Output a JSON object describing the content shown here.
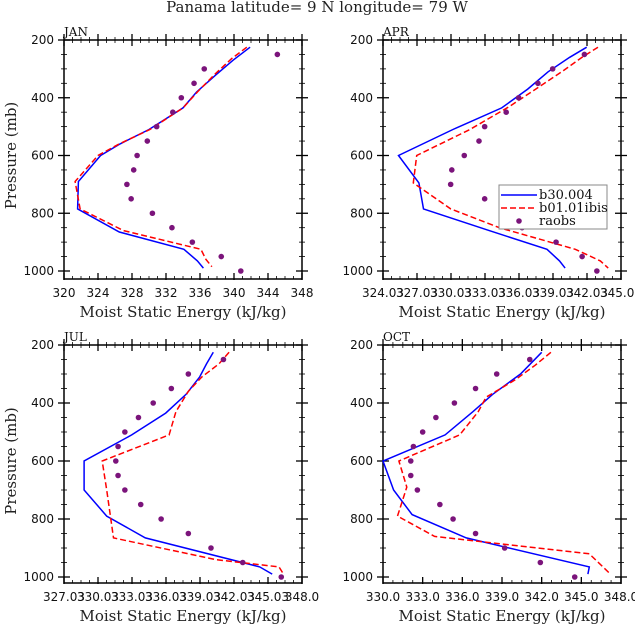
{
  "figure_title": "Panama  latitude= 9 N longitude= 79 W",
  "chart_data": [
    {
      "type": "line",
      "panel": "JAN",
      "title": "JAN",
      "xlabel": "Moist Static Energy (kJ/kg)",
      "ylabel": "Pressure (mb)",
      "xlim": [
        320,
        348
      ],
      "ylim": [
        1000,
        200
      ],
      "xticks": [
        320,
        324,
        328,
        332,
        336,
        340,
        344,
        348
      ],
      "xtick_labels": [
        "320",
        "324",
        "328",
        "332",
        "336",
        "340",
        "344",
        "348"
      ],
      "yticks": [
        200,
        400,
        600,
        800,
        1000
      ],
      "ytick_labels": [
        "200",
        "400",
        "600",
        "800",
        "1000"
      ],
      "series": [
        {
          "name": "b30.004",
          "style": "solid",
          "color": "#0000ff",
          "x": [
            341.9,
            339.9,
            337.9,
            335.6,
            334.0,
            330.0,
            326.6,
            324.3,
            321.7,
            321.6,
            326.5,
            334.1,
            335.7,
            336.4
          ],
          "y": [
            225,
            270,
            320,
            380,
            435,
            510,
            560,
            600,
            690,
            785,
            865,
            925,
            965,
            990
          ]
        },
        {
          "name": "b01.01ibis",
          "style": "dashed",
          "color": "#ff0000",
          "x": [
            341.5,
            339.7,
            337.7,
            335.7,
            334.0,
            330.1,
            326.5,
            324.0,
            321.3,
            321.9,
            327.0,
            336.1,
            336.7,
            337.4
          ],
          "y": [
            225,
            265,
            320,
            380,
            435,
            510,
            560,
            600,
            690,
            785,
            860,
            925,
            960,
            985
          ]
        }
      ],
      "raobs": {
        "name": "raobs",
        "color": "#7b147b",
        "x": [
          345.1,
          336.5,
          335.3,
          333.8,
          332.8,
          330.9,
          329.8,
          328.6,
          328.2,
          327.4,
          327.9,
          330.4,
          332.7,
          335.1,
          338.5,
          340.8
        ],
        "y": [
          250,
          300,
          350,
          400,
          450,
          500,
          550,
          600,
          650,
          700,
          750,
          800,
          850,
          900,
          950,
          1000
        ]
      }
    },
    {
      "type": "line",
      "panel": "APR",
      "title": "APR",
      "xlabel": "Moist Static Energy (kJ/kg)",
      "ylabel": "",
      "xlim": [
        324.03,
        345.03
      ],
      "ylim": [
        1000,
        200
      ],
      "xticks": [
        324.03,
        327.03,
        330.03,
        333.03,
        336.03,
        339.03,
        342.03,
        345.03
      ],
      "xtick_labels": [
        "324.03",
        "327.03",
        "330.03",
        "333.03",
        "336.03",
        "339.03",
        "342.03",
        "345.03"
      ],
      "yticks": [
        200,
        400,
        600,
        800,
        1000
      ],
      "ytick_labels": [
        "200",
        "400",
        "600",
        "800",
        "1000"
      ],
      "series": [
        {
          "name": "b30.004",
          "style": "solid",
          "color": "#0000ff",
          "x": [
            342.0,
            340.5,
            338.6,
            336.8,
            334.5,
            330.2,
            325.4,
            327.2,
            327.6,
            333.4,
            338.5,
            339.6,
            340.1
          ],
          "y": [
            225,
            260,
            310,
            370,
            435,
            510,
            600,
            695,
            785,
            860,
            925,
            965,
            990
          ]
        },
        {
          "name": "b01.01ibis",
          "style": "dashed",
          "color": "#ff0000",
          "x": [
            343.0,
            341.6,
            339.8,
            337.5,
            335.2,
            331.7,
            327.0,
            326.7,
            330.0,
            334.3,
            341.0,
            343.2,
            343.9
          ],
          "y": [
            225,
            260,
            310,
            370,
            430,
            510,
            600,
            695,
            785,
            850,
            925,
            965,
            990
          ]
        }
      ],
      "raobs": {
        "name": "raobs",
        "color": "#7b147b",
        "x": [
          341.8,
          339.0,
          337.7,
          336.0,
          334.9,
          333.0,
          332.5,
          331.2,
          330.1,
          330.0,
          333.0,
          334.8,
          336.3,
          339.3,
          341.6,
          342.9
        ],
        "y": [
          250,
          300,
          350,
          400,
          450,
          500,
          550,
          600,
          650,
          700,
          750,
          800,
          850,
          900,
          950,
          1000
        ]
      }
    },
    {
      "type": "line",
      "panel": "JUL",
      "title": "JUL",
      "xlabel": "Moist Static Energy (kJ/kg)",
      "ylabel": "Pressure (mb)",
      "xlim": [
        327.03,
        348.03
      ],
      "ylim": [
        1000,
        200
      ],
      "xticks": [
        327.03,
        330.03,
        333.03,
        336.03,
        339.03,
        342.03,
        345.03,
        348.03
      ],
      "xtick_labels": [
        "327.03",
        "330.03",
        "333.03",
        "336.03",
        "339.03",
        "342.03",
        "345.03",
        "348.0"
      ],
      "yticks": [
        200,
        400,
        600,
        800,
        1000
      ],
      "ytick_labels": [
        "200",
        "400",
        "600",
        "800",
        "1000"
      ],
      "series": [
        {
          "name": "b30.004",
          "style": "solid",
          "color": "#0000ff",
          "x": [
            340.2,
            339.6,
            339.0,
            337.8,
            336.0,
            333.0,
            328.8,
            328.8,
            330.8,
            334.2,
            344.3,
            345.4
          ],
          "y": [
            225,
            265,
            310,
            370,
            435,
            510,
            600,
            700,
            790,
            865,
            965,
            990
          ]
        },
        {
          "name": "b01.01ibis",
          "style": "dashed",
          "color": "#ff0000",
          "x": [
            341.6,
            340.7,
            339.2,
            338.0,
            336.9,
            336.3,
            330.4,
            330.8,
            331.4,
            340.4,
            346.0,
            346.4
          ],
          "y": [
            225,
            265,
            310,
            360,
            430,
            510,
            600,
            700,
            865,
            940,
            965,
            990
          ]
        }
      ],
      "raobs": {
        "name": "raobs",
        "color": "#7b147b",
        "x": [
          341.1,
          338.0,
          336.5,
          334.9,
          333.6,
          332.4,
          331.8,
          331.6,
          331.8,
          332.4,
          333.8,
          335.6,
          338.0,
          340.0,
          342.8,
          346.2
        ],
        "y": [
          250,
          300,
          350,
          400,
          450,
          500,
          550,
          600,
          650,
          700,
          750,
          800,
          850,
          900,
          950,
          1000
        ]
      }
    },
    {
      "type": "line",
      "panel": "OCT",
      "title": "OCT",
      "xlabel": "Moist Static Energy (kJ/kg)",
      "ylabel": "",
      "xlim": [
        330.0,
        348.0
      ],
      "ylim": [
        1000,
        200
      ],
      "xticks": [
        330.0,
        333.0,
        336.0,
        339.0,
        342.0,
        345.0,
        348.0
      ],
      "xtick_labels": [
        "330.0",
        "333.0",
        "336.0",
        "339.0",
        "342.0",
        "345.0",
        "348.0"
      ],
      "yticks": [
        200,
        400,
        600,
        800,
        1000
      ],
      "ytick_labels": [
        "200",
        "400",
        "600",
        "800",
        "1000"
      ],
      "series": [
        {
          "name": "b30.004",
          "style": "solid",
          "color": "#0000ff",
          "x": [
            342.0,
            340.4,
            338.3,
            336.8,
            334.7,
            330.0,
            330.8,
            332.2,
            336.3,
            345.6,
            345.5
          ],
          "y": [
            225,
            300,
            370,
            430,
            510,
            600,
            700,
            785,
            865,
            965,
            990
          ]
        },
        {
          "name": "b01.01ibis",
          "style": "dashed",
          "color": "#ff0000",
          "x": [
            342.7,
            341.5,
            340.0,
            337.8,
            337.2,
            335.8,
            331.2,
            331.8,
            331.1,
            333.9,
            345.6,
            347.2
          ],
          "y": [
            225,
            270,
            320,
            380,
            430,
            510,
            600,
            690,
            790,
            860,
            920,
            990
          ]
        }
      ],
      "raobs": {
        "name": "raobs",
        "color": "#7b147b",
        "x": [
          341.1,
          338.6,
          337.0,
          335.4,
          334.0,
          333.0,
          332.3,
          332.1,
          332.1,
          332.6,
          334.3,
          335.3,
          337.0,
          339.2,
          341.9,
          344.5
        ],
        "y": [
          250,
          300,
          350,
          400,
          450,
          500,
          550,
          600,
          650,
          700,
          750,
          800,
          850,
          900,
          950,
          1000
        ]
      }
    }
  ],
  "legend": {
    "panel": "APR",
    "placement": "right-middle",
    "entries": [
      {
        "label": "b30.004",
        "style": "solid",
        "color": "#0000ff"
      },
      {
        "label": "b01.01ibis",
        "style": "dashed",
        "color": "#ff0000"
      },
      {
        "label": "raobs",
        "style": "marker",
        "color": "#7b147b"
      }
    ]
  }
}
